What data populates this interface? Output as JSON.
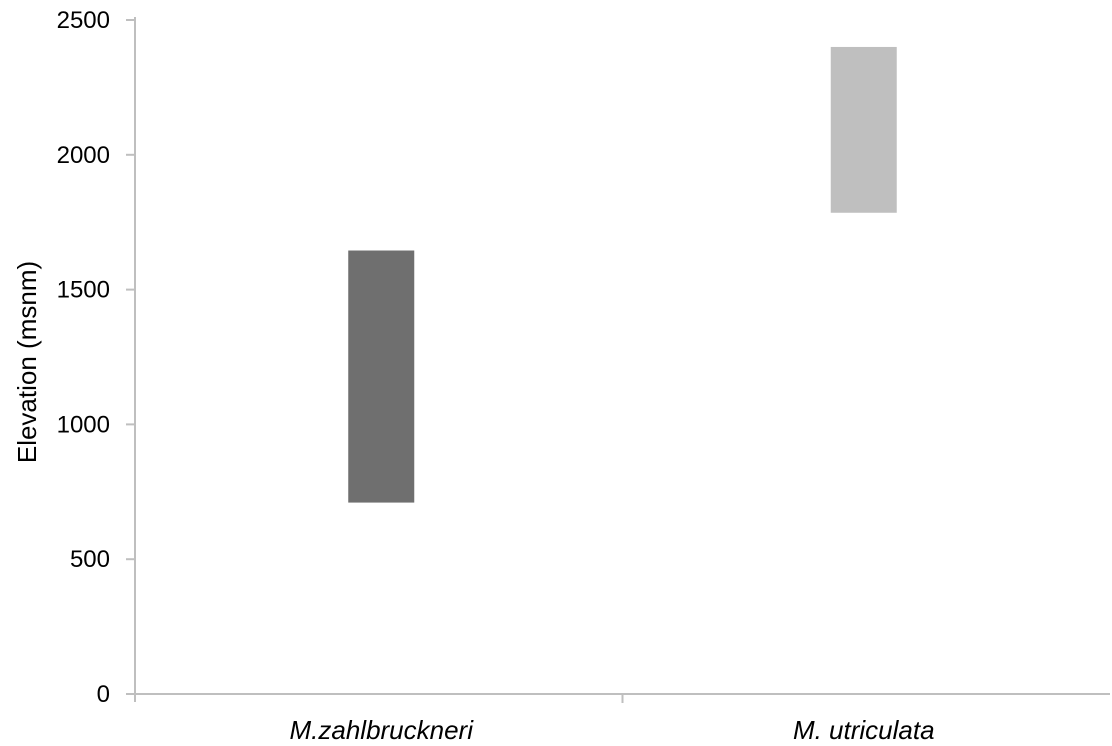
{
  "chart_data": {
    "type": "bar",
    "subtype": "floating-range",
    "ylabel": "Elevation (msnm)",
    "xlabel": "",
    "ylim": [
      0,
      2500
    ],
    "yticks": [
      0,
      500,
      1000,
      1500,
      2000,
      2500
    ],
    "ytick_labels": [
      "0",
      "500",
      "1000",
      "1500",
      "2000",
      "2500"
    ],
    "categories": [
      "M.zahlbruckneri",
      "M. utriculata"
    ],
    "ranges": [
      {
        "category": "M.zahlbruckneri",
        "min": 710,
        "max": 1645,
        "color": "#6f6f6f"
      },
      {
        "category": "M. utriculata",
        "min": 1785,
        "max": 2400,
        "color": "#bfbfbf"
      }
    ],
    "grid": false,
    "legend": "none"
  }
}
